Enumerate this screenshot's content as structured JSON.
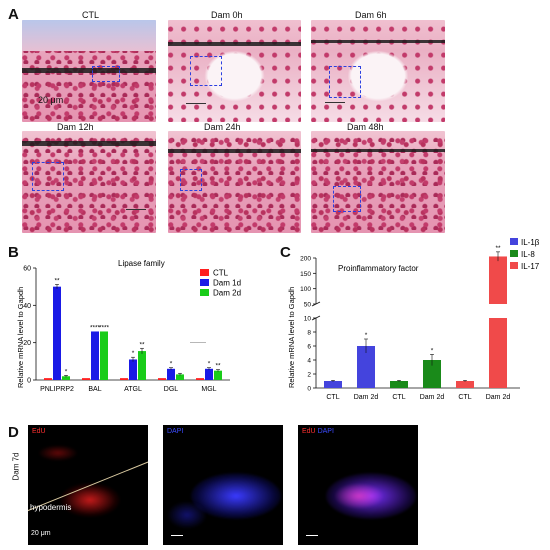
{
  "panelA": {
    "letter": "A",
    "tiles": [
      {
        "title": "CTL",
        "scale_label": "20 μm"
      },
      {
        "title": "Dam 0h"
      },
      {
        "title": "Dam 6h"
      },
      {
        "title": "Dam 12h"
      },
      {
        "title": "Dam 24h"
      },
      {
        "title": "Dam 48h"
      }
    ]
  },
  "panelB": {
    "letter": "B"
  },
  "panelC": {
    "letter": "C"
  },
  "panelD": {
    "letter": "D",
    "row_label": "Dam 7d",
    "tile1": {
      "channel": "EdU",
      "annotation": "hypodermis",
      "scale_label": "20 μm"
    },
    "tile2": {
      "channel": "DAPI"
    },
    "tile3": {
      "channel_a": "EdU",
      "channel_b": "DAPI"
    }
  },
  "colors": {
    "ctl": "#ff1f1f",
    "dam1d": "#1a1ae6",
    "dam2d": "#19cc19",
    "il1b": "#4444dd",
    "il8": "#1a8a1a",
    "il17": "#f04a4a"
  },
  "chart_data": [
    {
      "type": "bar",
      "title": "Lipase family",
      "ylabel": "Relative mRNA level to Gapdh",
      "ylim": [
        0,
        60
      ],
      "yticks": [
        "0",
        "20",
        "40",
        "60"
      ],
      "categories": [
        "PNLIPRP2",
        "BAL",
        "ATGL",
        "DGL",
        "MGL"
      ],
      "series": [
        {
          "name": "CTL",
          "values": [
            1,
            1,
            1,
            1,
            1
          ],
          "errors": [
            0,
            0,
            0,
            0,
            0
          ]
        },
        {
          "name": "Dam 1d",
          "values": [
            50,
            26,
            11,
            6,
            6
          ],
          "errors": [
            1.2,
            0,
            1.2,
            0.6,
            0.6
          ]
        },
        {
          "name": "Dam 2d",
          "values": [
            2,
            26,
            15.5,
            3,
            5
          ],
          "errors": [
            0.5,
            0,
            1.5,
            0.6,
            0.6
          ]
        }
      ],
      "significance": [
        [
          "",
          "**",
          "*"
        ],
        [
          "",
          "****",
          "****"
        ],
        [
          "",
          "*",
          "**"
        ],
        [
          "",
          "*",
          ""
        ],
        [
          "",
          "*",
          "**"
        ]
      ]
    },
    {
      "type": "bar",
      "title": "Proinflammatory factor",
      "ylabel": "Relative mRNA level to Gapdh",
      "broken_axis": true,
      "ylim_lower": [
        0,
        10
      ],
      "ylim_upper": [
        50,
        200
      ],
      "yticks_lower": [
        "0",
        "2",
        "4",
        "6",
        "8",
        "10"
      ],
      "yticks_upper": [
        "50",
        "100",
        "150",
        "200"
      ],
      "categories": [
        "CTL",
        "Dam 2d",
        "CTL",
        "Dam 2d",
        "CTL",
        "Dam 2d"
      ],
      "legend": [
        "IL-1β",
        "IL-8",
        "IL-17"
      ],
      "groups": [
        "IL-1β",
        "IL-1β",
        "IL-8",
        "IL-8",
        "IL-17",
        "IL-17"
      ],
      "values": [
        1,
        6,
        1,
        4,
        1,
        205
      ],
      "errors": [
        0.1,
        1.0,
        0.1,
        0.8,
        0.1,
        15
      ],
      "significance": [
        "",
        "*",
        "",
        "*",
        "",
        "**"
      ]
    }
  ]
}
